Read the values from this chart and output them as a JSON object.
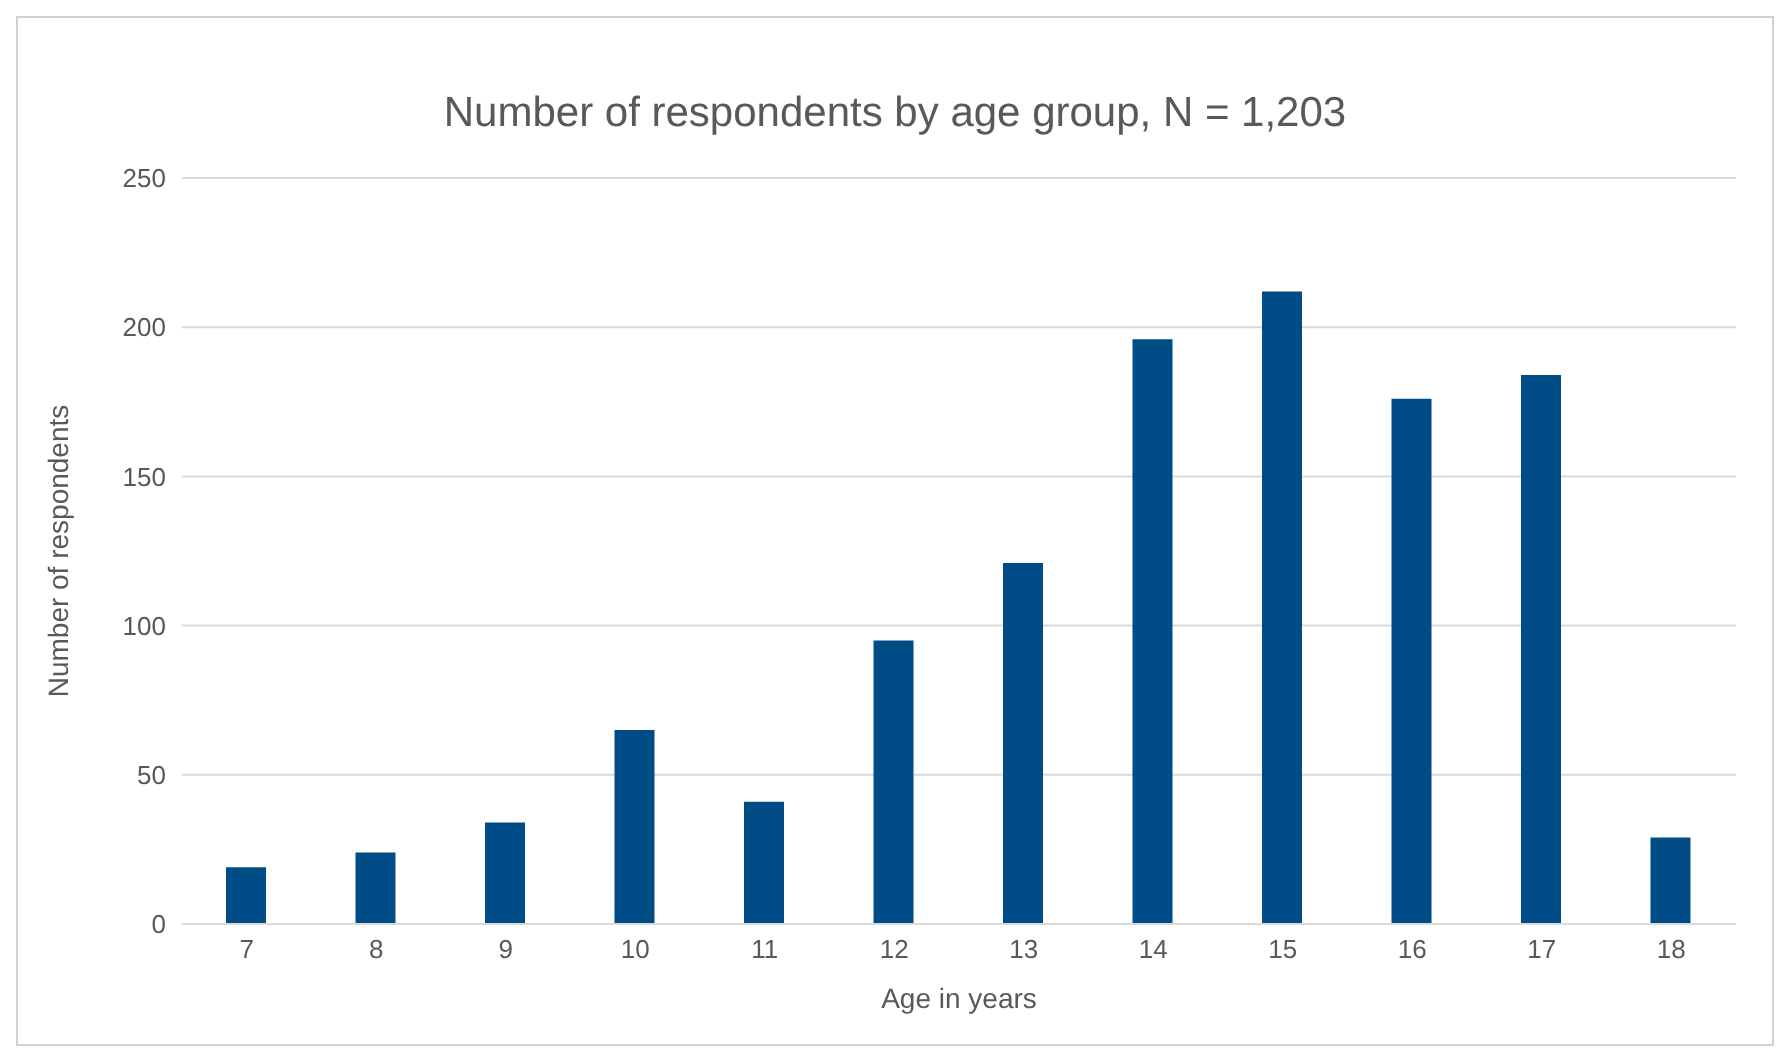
{
  "chart_data": {
    "type": "bar",
    "title": "Number of respondents by age group, N = 1,203",
    "xlabel": "Age in years",
    "ylabel": "Number of respondents",
    "categories": [
      "7",
      "8",
      "9",
      "10",
      "11",
      "12",
      "13",
      "14",
      "15",
      "16",
      "17",
      "18"
    ],
    "values": [
      19,
      24,
      34,
      65,
      41,
      95,
      121,
      196,
      212,
      176,
      184,
      29
    ],
    "color": "#004c87",
    "ylim": [
      0,
      250
    ],
    "yticks": [
      0,
      50,
      100,
      150,
      200,
      250
    ],
    "grid": "y"
  }
}
